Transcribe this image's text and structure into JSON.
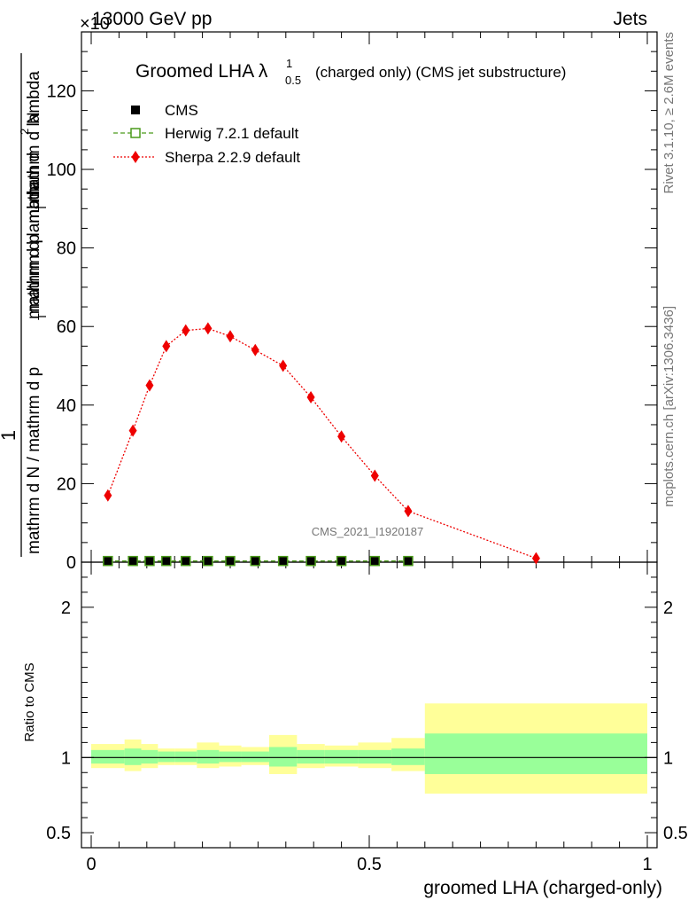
{
  "header": {
    "left": "13000 GeV pp",
    "right": "Jets",
    "exponent": "×10"
  },
  "chart_data": {
    "type": "scatter",
    "title": "Groomed LHA λ",
    "title_sup": "1",
    "title_sub": "0.5",
    "title_suffix": "(charged only) (CMS jet substructure)",
    "analysis_id": "CMS_2021_I1920187",
    "side_label_top": "Rivet 3.1.10, ≥ 2.6M events",
    "side_label_bottom": "mcplots.cern.ch [arXiv:1306.3436]",
    "ylabel_parts": [
      "1",
      "mathrm d N / mathrm d p",
      "T",
      "mathrm d lambda",
      "mathrm d",
      "2",
      "N",
      "mathrm d p",
      "T",
      "mathrm d lambda"
    ],
    "xlabel": "groomed LHA (charged-only)",
    "ratio_ylabel": "Ratio to CMS",
    "main": {
      "ylim": [
        0,
        135
      ],
      "yticks": [
        0,
        20,
        40,
        60,
        80,
        100,
        120
      ],
      "ytick_labels": [
        "0",
        "20",
        "40",
        "60",
        "80",
        "100",
        "120"
      ]
    },
    "ratio": {
      "ylim": [
        0.4,
        2.3
      ],
      "yticks": [
        0.5,
        1,
        2
      ],
      "ytick_labels": [
        "0.5",
        "1",
        "2"
      ]
    },
    "xlim": [
      0,
      1
    ],
    "xticks": [
      0,
      0.5,
      1
    ],
    "xtick_labels": [
      "0",
      "0.5",
      "1"
    ],
    "bins": [
      {
        "lo": 0.0,
        "hi": 0.06,
        "x": 0.03
      },
      {
        "lo": 0.06,
        "hi": 0.09,
        "x": 0.075
      },
      {
        "lo": 0.09,
        "hi": 0.12,
        "x": 0.105
      },
      {
        "lo": 0.12,
        "hi": 0.15,
        "x": 0.135
      },
      {
        "lo": 0.15,
        "hi": 0.19,
        "x": 0.17
      },
      {
        "lo": 0.19,
        "hi": 0.23,
        "x": 0.21
      },
      {
        "lo": 0.23,
        "hi": 0.27,
        "x": 0.25
      },
      {
        "lo": 0.27,
        "hi": 0.32,
        "x": 0.295
      },
      {
        "lo": 0.32,
        "hi": 0.37,
        "x": 0.345
      },
      {
        "lo": 0.37,
        "hi": 0.42,
        "x": 0.395
      },
      {
        "lo": 0.42,
        "hi": 0.48,
        "x": 0.45
      },
      {
        "lo": 0.48,
        "hi": 0.54,
        "x": 0.51
      },
      {
        "lo": 0.54,
        "hi": 0.6,
        "x": 0.57
      },
      {
        "lo": 0.6,
        "hi": 1.0,
        "x": 0.8
      }
    ],
    "series": [
      {
        "name": "CMS",
        "marker": "square",
        "color": "#000000",
        "values": [
          0.3,
          0.3,
          0.3,
          0.3,
          0.3,
          0.3,
          0.3,
          0.3,
          0.3,
          0.3,
          0.3,
          0.3,
          0.3,
          0.0
        ]
      },
      {
        "name": "Herwig 7.2.1 default",
        "marker": "open-square",
        "color": "#4a9a1a",
        "values": [
          0.3,
          0.3,
          0.3,
          0.3,
          0.3,
          0.3,
          0.3,
          0.3,
          0.3,
          0.3,
          0.3,
          0.3,
          0.3,
          0.0
        ]
      },
      {
        "name": "Sherpa 2.2.9 default",
        "marker": "diamond",
        "color": "#ee0000",
        "values": [
          17,
          33.5,
          45,
          55,
          59,
          59.5,
          57.5,
          54,
          50,
          42,
          32,
          22,
          13,
          1
        ]
      }
    ],
    "ratio_bands": [
      {
        "inner": [
          0.96,
          1.05
        ],
        "outer": [
          0.93,
          1.09
        ]
      },
      {
        "inner": [
          0.95,
          1.06
        ],
        "outer": [
          0.91,
          1.12
        ]
      },
      {
        "inner": [
          0.96,
          1.05
        ],
        "outer": [
          0.93,
          1.09
        ]
      },
      {
        "inner": [
          0.97,
          1.04
        ],
        "outer": [
          0.95,
          1.06
        ]
      },
      {
        "inner": [
          0.97,
          1.04
        ],
        "outer": [
          0.95,
          1.06
        ]
      },
      {
        "inner": [
          0.96,
          1.05
        ],
        "outer": [
          0.93,
          1.1
        ]
      },
      {
        "inner": [
          0.97,
          1.04
        ],
        "outer": [
          0.94,
          1.08
        ]
      },
      {
        "inner": [
          0.97,
          1.04
        ],
        "outer": [
          0.95,
          1.07
        ]
      },
      {
        "inner": [
          0.94,
          1.07
        ],
        "outer": [
          0.89,
          1.15
        ]
      },
      {
        "inner": [
          0.96,
          1.05
        ],
        "outer": [
          0.93,
          1.09
        ]
      },
      {
        "inner": [
          0.96,
          1.05
        ],
        "outer": [
          0.94,
          1.08
        ]
      },
      {
        "inner": [
          0.96,
          1.05
        ],
        "outer": [
          0.93,
          1.1
        ]
      },
      {
        "inner": [
          0.95,
          1.06
        ],
        "outer": [
          0.91,
          1.13
        ]
      },
      {
        "inner": [
          0.89,
          1.16
        ],
        "outer": [
          0.76,
          1.36
        ]
      }
    ]
  },
  "colors": {
    "band_inner": "#99ff99",
    "band_outer": "#ffff99"
  }
}
